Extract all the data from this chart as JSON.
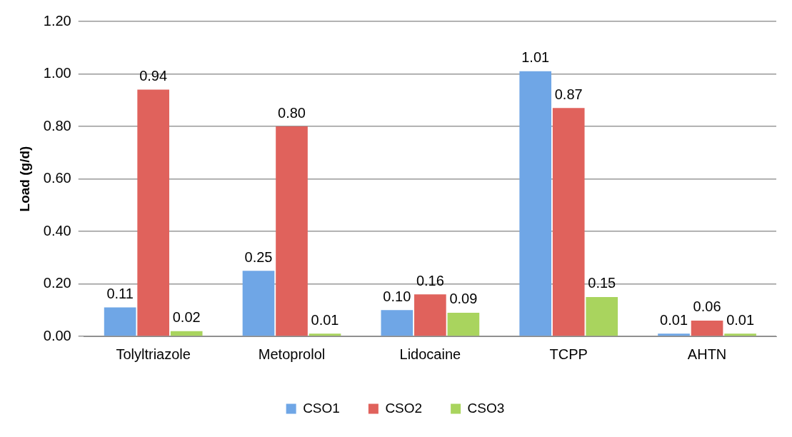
{
  "chart_data": {
    "type": "bar",
    "ylabel": "Load (g/d)",
    "categories": [
      "Tolyltriazole",
      "Metoprolol",
      "Lidocaine",
      "TCPP",
      "AHTN"
    ],
    "series": [
      {
        "name": "CSO1",
        "color": "#6fa6e6",
        "values": [
          0.11,
          0.25,
          0.1,
          1.01,
          0.01
        ],
        "value_labels": [
          "0.11",
          "0.25",
          "0.10",
          "1.01",
          "0.01"
        ]
      },
      {
        "name": "CSO2",
        "color": "#e0625c",
        "values": [
          0.94,
          0.8,
          0.16,
          0.87,
          0.06
        ],
        "value_labels": [
          "0.94",
          "0.80",
          "0.16",
          "0.87",
          "0.06"
        ]
      },
      {
        "name": "CSO3",
        "color": "#a9d45e",
        "values": [
          0.02,
          0.01,
          0.09,
          0.15,
          0.01
        ],
        "value_labels": [
          "0.02",
          "0.01",
          "0.09",
          "0.15",
          "0.01"
        ]
      }
    ],
    "ylim": [
      0,
      1.2
    ],
    "yticks": [
      {
        "value": 0,
        "label": "0.00"
      },
      {
        "value": 0.2,
        "label": "0.20"
      },
      {
        "value": 0.4,
        "label": "0.40"
      },
      {
        "value": 0.6,
        "label": "0.60"
      },
      {
        "value": 0.8,
        "label": "0.80"
      },
      {
        "value": 1.0,
        "label": "1.00"
      },
      {
        "value": 1.2,
        "label": "1.20"
      }
    ],
    "grid": "y",
    "legend": "bottom"
  }
}
